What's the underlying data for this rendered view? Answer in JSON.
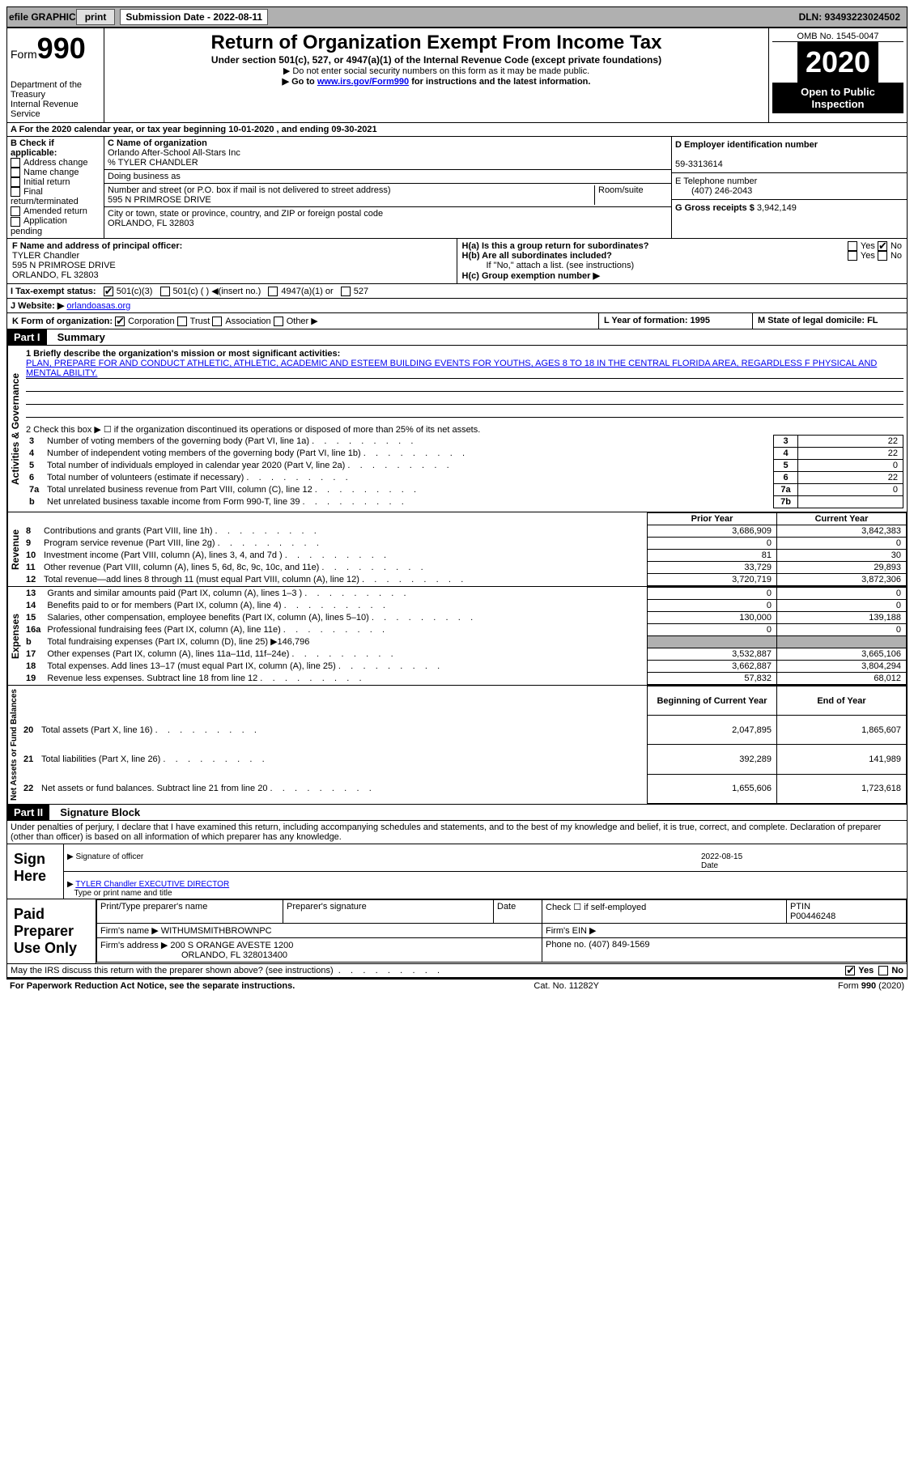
{
  "topbar": {
    "efile_label": "efile GRAPHIC",
    "print_btn": "print",
    "sub_date_label": "Submission Date - 2022-08-11",
    "dln": "DLN: 93493223024502"
  },
  "header": {
    "form_label": "Form",
    "form_number": "990",
    "dept": "Department of the Treasury\nInternal Revenue Service",
    "title": "Return of Organization Exempt From Income Tax",
    "subtitle": "Under section 501(c), 527, or 4947(a)(1) of the Internal Revenue Code (except private foundations)",
    "note1": "▶ Do not enter social security numbers on this form as it may be made public.",
    "note2_pre": "▶ Go to ",
    "note2_link": "www.irs.gov/Form990",
    "note2_post": " for instructions and the latest information.",
    "omb": "OMB No. 1545-0047",
    "year": "2020",
    "open": "Open to Public Inspection"
  },
  "line_a": "For the 2020 calendar year, or tax year beginning 10-01-2020   , and ending 09-30-2021",
  "section_b": {
    "label": "B Check if applicable:",
    "opts": [
      "Address change",
      "Name change",
      "Initial return",
      "Final return/terminated",
      "Amended return",
      "Application pending"
    ]
  },
  "section_c": {
    "name_label": "C Name of organization",
    "name": "Orlando After-School All-Stars Inc",
    "care_of": "% TYLER CHANDLER",
    "dba_label": "Doing business as",
    "street_label": "Number and street (or P.O. box if mail is not delivered to street address)",
    "room_label": "Room/suite",
    "street": "595 N PRIMROSE DRIVE",
    "city_label": "City or town, state or province, country, and ZIP or foreign postal code",
    "city": "ORLANDO, FL  32803"
  },
  "section_d": {
    "label": "D Employer identification number",
    "value": "59-3313614"
  },
  "section_e": {
    "label": "E Telephone number",
    "value": "(407) 246-2043"
  },
  "section_g": {
    "label": "G Gross receipts $",
    "value": "3,942,149"
  },
  "section_f": {
    "label": "F Name and address of principal officer:",
    "name": "TYLER Chandler",
    "street": "595 N PRIMROSE DRIVE",
    "city": "ORLANDO, FL  32803"
  },
  "section_h": {
    "ha": "H(a)  Is this a group return for subordinates?",
    "hb": "H(b)  Are all subordinates included?",
    "hb_note": "If \"No,\" attach a list. (see instructions)",
    "hc": "H(c)  Group exemption number ▶",
    "yes": "Yes",
    "no": "No"
  },
  "line_i": {
    "label": "I   Tax-exempt status:",
    "opts": [
      "501(c)(3)",
      "501(c) (  ) ◀(insert no.)",
      "4947(a)(1) or",
      "527"
    ]
  },
  "line_j": {
    "label": "J   Website: ▶",
    "value": "orlandoasas.org"
  },
  "line_k": {
    "label": "K Form of organization:",
    "opts": [
      "Corporation",
      "Trust",
      "Association",
      "Other ▶"
    ]
  },
  "line_l": "L Year of formation: 1995",
  "line_m": "M State of legal domicile: FL",
  "part1": {
    "label": "Part I",
    "title": "Summary",
    "mission_label": "1   Briefly describe the organization's mission or most significant activities:",
    "mission": "PLAN, PREPARE FOR AND CONDUCT ATHLETIC, ATHLETIC, ACADEMIC AND ESTEEM BUILDING EVENTS FOR YOUTHS, AGES 8 TO 18 IN THE CENTRAL FLORIDA AREA, REGARDLESS F PHYSICAL AND MENTAL ABILITY.",
    "line2": "2   Check this box ▶ ☐  if the organization discontinued its operations or disposed of more than 25% of its net assets.",
    "governance_rows": [
      {
        "n": "3",
        "label": "Number of voting members of the governing body (Part VI, line 1a)",
        "box": "3",
        "val": "22"
      },
      {
        "n": "4",
        "label": "Number of independent voting members of the governing body (Part VI, line 1b)",
        "box": "4",
        "val": "22"
      },
      {
        "n": "5",
        "label": "Total number of individuals employed in calendar year 2020 (Part V, line 2a)",
        "box": "5",
        "val": "0"
      },
      {
        "n": "6",
        "label": "Total number of volunteers (estimate if necessary)",
        "box": "6",
        "val": "22"
      },
      {
        "n": "7a",
        "label": "Total unrelated business revenue from Part VIII, column (C), line 12",
        "box": "7a",
        "val": "0"
      },
      {
        "n": "b",
        "label": "Net unrelated business taxable income from Form 990-T, line 39",
        "box": "7b",
        "val": ""
      }
    ],
    "col_headers": {
      "prior": "Prior Year",
      "current": "Current Year",
      "boy": "Beginning of Current Year",
      "eoy": "End of Year"
    },
    "revenue_rows": [
      {
        "n": "8",
        "label": "Contributions and grants (Part VIII, line 1h)",
        "py": "3,686,909",
        "cy": "3,842,383"
      },
      {
        "n": "9",
        "label": "Program service revenue (Part VIII, line 2g)",
        "py": "0",
        "cy": "0"
      },
      {
        "n": "10",
        "label": "Investment income (Part VIII, column (A), lines 3, 4, and 7d )",
        "py": "81",
        "cy": "30"
      },
      {
        "n": "11",
        "label": "Other revenue (Part VIII, column (A), lines 5, 6d, 8c, 9c, 10c, and 11e)",
        "py": "33,729",
        "cy": "29,893"
      },
      {
        "n": "12",
        "label": "Total revenue—add lines 8 through 11 (must equal Part VIII, column (A), line 12)",
        "py": "3,720,719",
        "cy": "3,872,306"
      }
    ],
    "expense_rows": [
      {
        "n": "13",
        "label": "Grants and similar amounts paid (Part IX, column (A), lines 1–3 )",
        "py": "0",
        "cy": "0"
      },
      {
        "n": "14",
        "label": "Benefits paid to or for members (Part IX, column (A), line 4)",
        "py": "0",
        "cy": "0"
      },
      {
        "n": "15",
        "label": "Salaries, other compensation, employee benefits (Part IX, column (A), lines 5–10)",
        "py": "130,000",
        "cy": "139,188"
      },
      {
        "n": "16a",
        "label": "Professional fundraising fees (Part IX, column (A), line 11e)",
        "py": "0",
        "cy": "0"
      },
      {
        "n": "b",
        "label": "Total fundraising expenses (Part IX, column (D), line 25) ▶146,796",
        "py": "",
        "cy": "",
        "shade": true
      },
      {
        "n": "17",
        "label": "Other expenses (Part IX, column (A), lines 11a–11d, 11f–24e)",
        "py": "3,532,887",
        "cy": "3,665,106"
      },
      {
        "n": "18",
        "label": "Total expenses. Add lines 13–17 (must equal Part IX, column (A), line 25)",
        "py": "3,662,887",
        "cy": "3,804,294"
      },
      {
        "n": "19",
        "label": "Revenue less expenses. Subtract line 18 from line 12",
        "py": "57,832",
        "cy": "68,012"
      }
    ],
    "net_rows": [
      {
        "n": "20",
        "label": "Total assets (Part X, line 16)",
        "py": "2,047,895",
        "cy": "1,865,607"
      },
      {
        "n": "21",
        "label": "Total liabilities (Part X, line 26)",
        "py": "392,289",
        "cy": "141,989"
      },
      {
        "n": "22",
        "label": "Net assets or fund balances. Subtract line 21 from line 20",
        "py": "1,655,606",
        "cy": "1,723,618"
      }
    ],
    "vert_gov": "Activities & Governance",
    "vert_rev": "Revenue",
    "vert_exp": "Expenses",
    "vert_net": "Net Assets or Fund Balances"
  },
  "part2": {
    "label": "Part II",
    "title": "Signature Block",
    "declaration": "Under penalties of perjury, I declare that I have examined this return, including accompanying schedules and statements, and to the best of my knowledge and belief, it is true, correct, and complete. Declaration of preparer (other than officer) is based on all information of which preparer has any knowledge.",
    "sign_here": "Sign Here",
    "sig_officer": "Signature of officer",
    "sig_date_label": "Date",
    "sig_date": "2022-08-15",
    "officer_name": "TYLER Chandler  EXECUTIVE DIRECTOR",
    "type_or_print": "Type or print name and title",
    "paid_prep": "Paid Preparer Use Only",
    "prep_hdr": [
      "Print/Type preparer's name",
      "Preparer's signature",
      "Date"
    ],
    "check_if": "Check ☐  if self-employed",
    "ptin_label": "PTIN",
    "ptin": "P00446248",
    "firm_name_label": "Firm's name    ▶",
    "firm_name": "WITHUMSMITHBROWNPC",
    "firm_ein_label": "Firm's EIN ▶",
    "firm_addr_label": "Firm's address ▶",
    "firm_addr_1": "200 S ORANGE AVESTE 1200",
    "firm_addr_2": "ORLANDO, FL  328013400",
    "phone_label": "Phone no.",
    "phone": "(407) 849-1569",
    "discuss": "May the IRS discuss this return with the preparer shown above? (see instructions)",
    "yes": "Yes",
    "no": "No"
  },
  "footer": {
    "left": "For Paperwork Reduction Act Notice, see the separate instructions.",
    "mid": "Cat. No. 11282Y",
    "right": "Form 990 (2020)"
  }
}
